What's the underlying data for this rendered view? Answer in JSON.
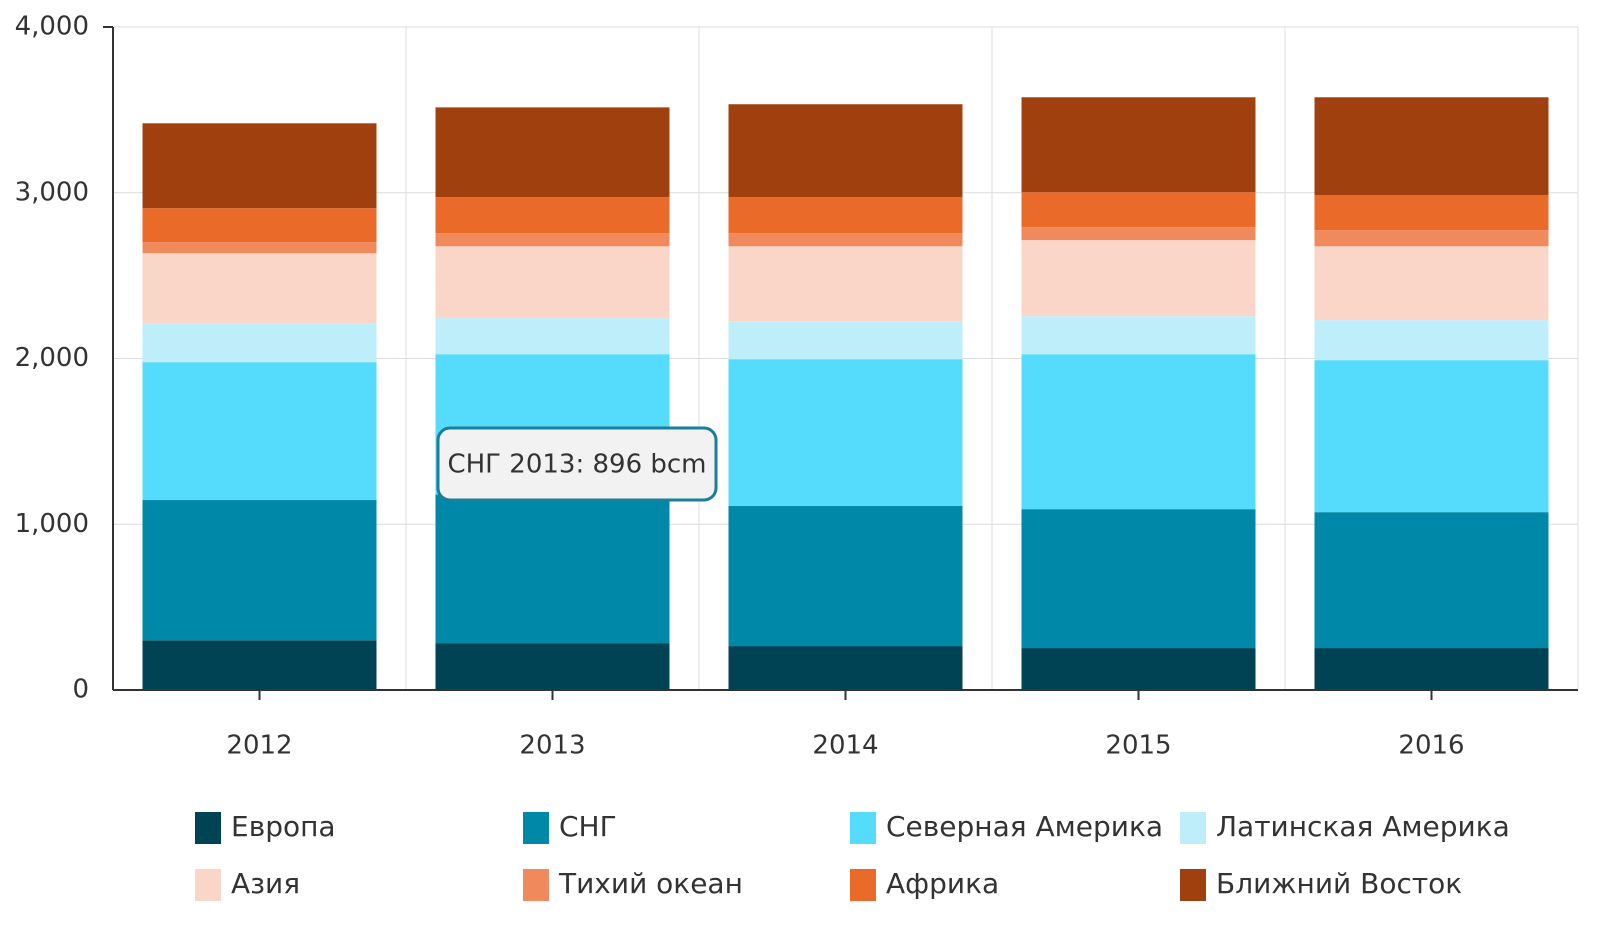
{
  "chart_data": {
    "type": "stacked_bar",
    "categories": [
      "2012",
      "2013",
      "2014",
      "2015",
      "2016"
    ],
    "series": [
      {
        "name": "Европа",
        "color": "#004355",
        "values": [
          300,
          283,
          265,
          253,
          253
        ]
      },
      {
        "name": "СНГ",
        "color": "#0088a8",
        "values": [
          846,
          896,
          845,
          838,
          820
        ]
      },
      {
        "name": "Северная Америка",
        "color": "#55dcfc",
        "values": [
          832,
          847,
          886,
          935,
          917
        ]
      },
      {
        "name": "Латинская Америка",
        "color": "#bdeefa",
        "values": [
          235,
          217,
          229,
          229,
          241
        ]
      },
      {
        "name": "Азия",
        "color": "#f9d6c8",
        "values": [
          422,
          434,
          452,
          459,
          446
        ]
      },
      {
        "name": "Тихий океан",
        "color": "#f08a5c",
        "values": [
          66,
          79,
          79,
          78,
          97
        ]
      },
      {
        "name": "Африка",
        "color": "#ea6a2a",
        "values": [
          206,
          217,
          217,
          211,
          211
        ]
      },
      {
        "name": "Ближний Восток",
        "color": "#a0400f",
        "values": [
          512,
          542,
          561,
          573,
          591
        ]
      }
    ],
    "ylim": [
      0,
      4000
    ],
    "yticks": [
      0,
      {
        "value": 1000,
        "label": "1,000"
      },
      {
        "value": 2000,
        "label": "2,000"
      },
      {
        "value": 3000,
        "label": "3,000"
      },
      {
        "value": 4000,
        "label": "4,000"
      }
    ],
    "grid": true,
    "tooltip": "СНГ 2013: 896 bcm"
  }
}
